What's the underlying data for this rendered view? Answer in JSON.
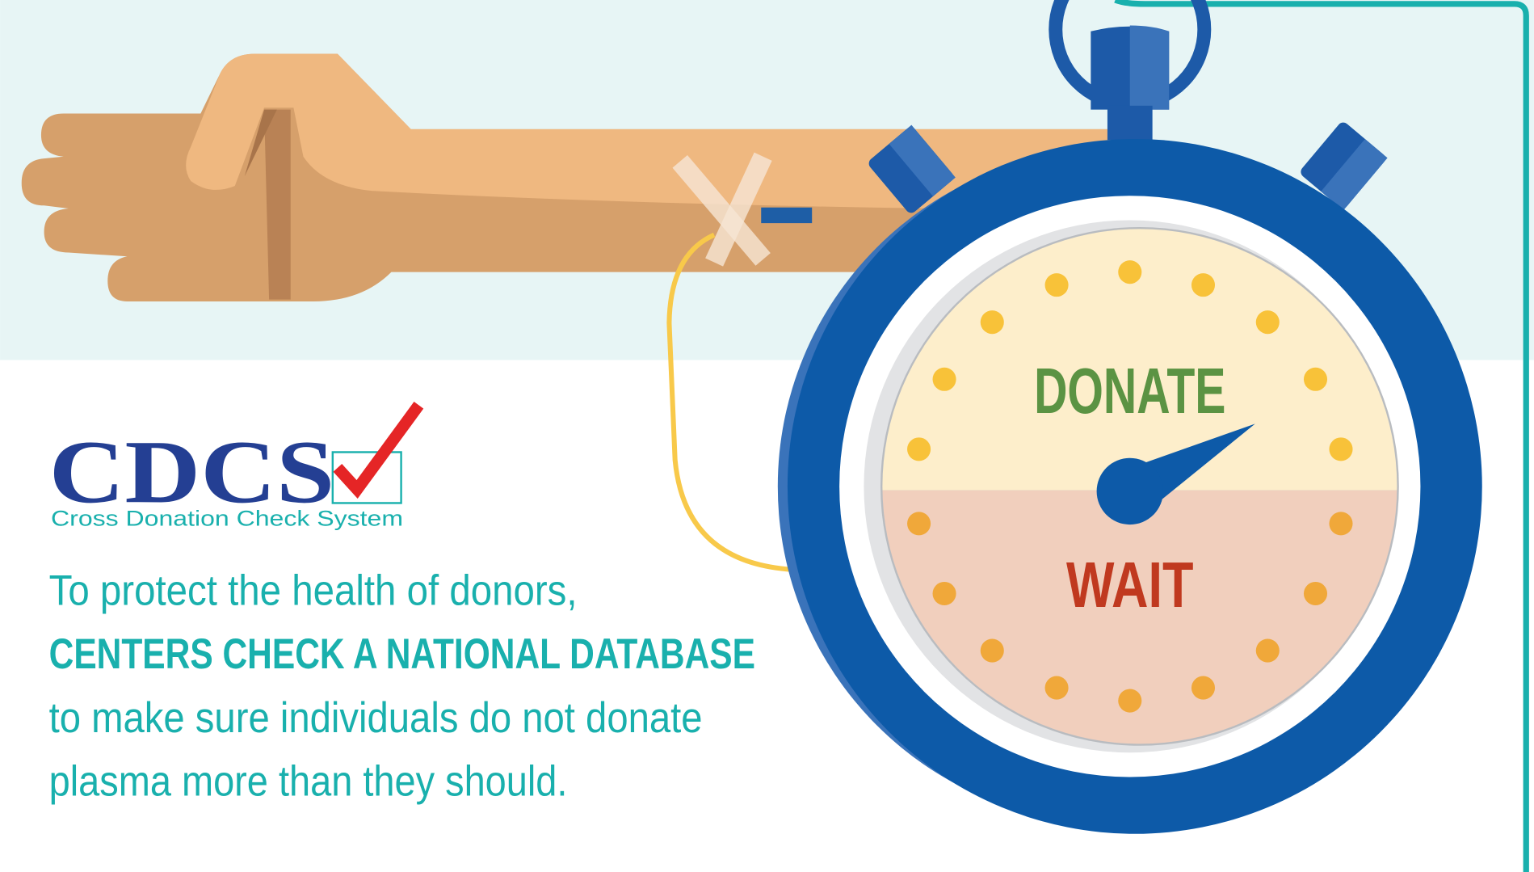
{
  "logo": {
    "mark": "CDCS",
    "tagline": "Cross Donation Check System"
  },
  "message": {
    "lines": [
      "To protect the health of donors,",
      "CENTERS CHECK A NATIONAL DATABASE",
      "to make sure individuals do not donate",
      "plasma more than they should."
    ]
  },
  "dial": {
    "top": "DONATE",
    "bottom": "WAIT"
  }
}
